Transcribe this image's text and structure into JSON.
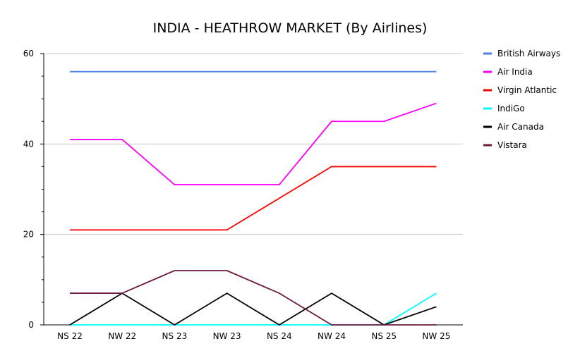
{
  "chart_data": {
    "type": "line",
    "title": "INDIA - HEATHROW MARKET (By Airlines)",
    "xlabel": "",
    "ylabel": "",
    "categories": [
      "NS 22",
      "NW 22",
      "NS 23",
      "NW 23",
      "NS 24",
      "NW 24",
      "NS 25",
      "NW 25"
    ],
    "ylim": [
      0,
      60
    ],
    "yticks": [
      0,
      20,
      40,
      60
    ],
    "grid": true,
    "legend_position": "right",
    "series": [
      {
        "name": "British Airways",
        "color": "#4f81e8",
        "values": [
          56,
          56,
          56,
          56,
          56,
          56,
          56,
          56
        ]
      },
      {
        "name": "Air India",
        "color": "#ff00ff",
        "values": [
          41,
          41,
          31,
          31,
          31,
          45,
          45,
          49
        ]
      },
      {
        "name": "Virgin Atlantic",
        "color": "#ff0000",
        "values": [
          21,
          21,
          21,
          21,
          28,
          35,
          35,
          35
        ]
      },
      {
        "name": "IndiGo",
        "color": "#00ffff",
        "values": [
          0,
          0,
          0,
          0,
          0,
          0,
          0,
          7
        ]
      },
      {
        "name": "Air Canada",
        "color": "#000000",
        "values": [
          0,
          7,
          0,
          7,
          0,
          7,
          0,
          4
        ]
      },
      {
        "name": "Vistara",
        "color": "#6d1a3f",
        "values": [
          7,
          7,
          12,
          12,
          7,
          0,
          0,
          0
        ]
      }
    ]
  }
}
